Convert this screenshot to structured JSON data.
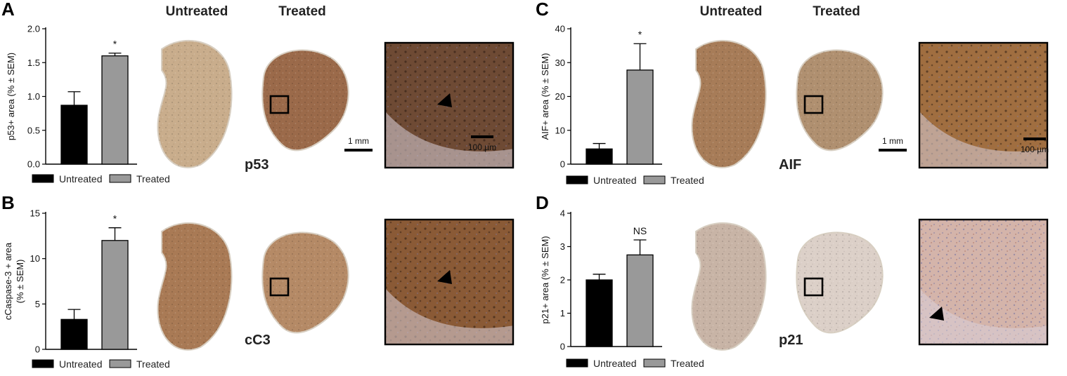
{
  "figure": {
    "panel_letters": [
      "A",
      "B",
      "C",
      "D"
    ],
    "column_headers": {
      "untreated": "Untreated",
      "treated": "Treated"
    },
    "scale_bars": {
      "low_mag": "1 mm",
      "high_mag": "100 µm"
    }
  },
  "panels": [
    {
      "letter": "A",
      "marker": "p53",
      "stain_colors": {
        "untreated": "#c9ad8c",
        "treated": "#9b6a4a",
        "zoom": "#6e4a34"
      }
    },
    {
      "letter": "B",
      "marker": "cC3",
      "stain_colors": {
        "untreated": "#a97a55",
        "treated": "#b58a66",
        "zoom": "#8a5a36"
      }
    },
    {
      "letter": "C",
      "marker": "AIF",
      "stain_colors": {
        "untreated": "#a77c58",
        "treated": "#b09070",
        "zoom": "#a06e40"
      }
    },
    {
      "letter": "D",
      "marker": "p21",
      "stain_colors": {
        "untreated": "#c8b4a6",
        "treated": "#dcd0c8",
        "zoom": "#d4b4aa"
      }
    }
  ],
  "colors": {
    "untreated_bar": "#000000",
    "treated_bar": "#999999"
  },
  "chart_data": [
    {
      "type": "bar",
      "panel": "A",
      "categories": [
        "Untreated",
        "Treated"
      ],
      "values": [
        0.87,
        1.6
      ],
      "errors": [
        0.2,
        0.04
      ],
      "significance": "*",
      "ylabel": "p53+ area (% ± SEM)",
      "ylim": [
        0,
        2.0
      ],
      "yticks": [
        "0.0",
        "0.5",
        "1.0",
        "1.5",
        "2.0"
      ],
      "ytick_values": [
        0,
        0.5,
        1.0,
        1.5,
        2.0
      ],
      "legend": [
        "Untreated",
        "Treated"
      ]
    },
    {
      "type": "bar",
      "panel": "B",
      "categories": [
        "Untreated",
        "Treated"
      ],
      "values": [
        3.3,
        12.0
      ],
      "errors": [
        1.1,
        1.4
      ],
      "significance": "*",
      "ylabel_lines": [
        "cCaspase-3 + area",
        "(% ± SEM)"
      ],
      "ylim": [
        0,
        15
      ],
      "yticks": [
        "0",
        "5",
        "10",
        "15"
      ],
      "ytick_values": [
        0,
        5,
        10,
        15
      ],
      "legend": [
        "Untreated",
        "Treated"
      ]
    },
    {
      "type": "bar",
      "panel": "C",
      "categories": [
        "Untreated",
        "Treated"
      ],
      "values": [
        4.5,
        27.8
      ],
      "errors": [
        1.6,
        7.8
      ],
      "significance": "*",
      "ylabel": "AIF+ area (% ± SEM)",
      "ylim": [
        0,
        40
      ],
      "yticks": [
        "0",
        "10",
        "20",
        "30",
        "40"
      ],
      "ytick_values": [
        0,
        10,
        20,
        30,
        40
      ],
      "legend": [
        "Untreated",
        "Treated"
      ]
    },
    {
      "type": "bar",
      "panel": "D",
      "categories": [
        "Untreated",
        "Treated"
      ],
      "values": [
        2.0,
        2.75
      ],
      "errors": [
        0.17,
        0.45
      ],
      "significance": "NS",
      "ylabel": "p21+ area (% ± SEM)",
      "ylim": [
        0,
        4
      ],
      "yticks": [
        "0",
        "1",
        "2",
        "3",
        "4"
      ],
      "ytick_values": [
        0,
        1,
        2,
        3,
        4
      ],
      "legend": [
        "Untreated",
        "Treated"
      ]
    }
  ]
}
